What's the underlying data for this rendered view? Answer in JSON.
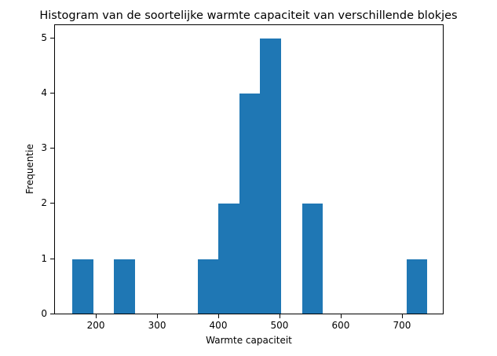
{
  "chart_data": {
    "type": "bar",
    "subtype": "histogram",
    "title": "Histogram van de soortelijke warmte capaciteit van verschillende blokjes",
    "xlabel": "Warmte capaciteit",
    "ylabel": "Frequentie",
    "bin_edges": [
      161.5,
      195.6,
      229.7,
      263.8,
      297.9,
      332.0,
      366.1,
      400.2,
      434.3,
      468.4,
      502.5,
      536.6,
      570.7,
      604.8,
      638.9,
      673.0,
      707.1,
      741.2
    ],
    "values": [
      1,
      0,
      1,
      0,
      0,
      0,
      1,
      2,
      4,
      5,
      0,
      2,
      0,
      0,
      0,
      0,
      1
    ],
    "xlim": [
      132,
      768
    ],
    "ylim": [
      0,
      5.25
    ],
    "xticks": [
      "200",
      "300",
      "400",
      "500",
      "600",
      "700"
    ],
    "yticks": [
      "0",
      "1",
      "2",
      "3",
      "4",
      "5"
    ],
    "bar_color": "#1f77b4",
    "grid": false,
    "legend": null
  }
}
